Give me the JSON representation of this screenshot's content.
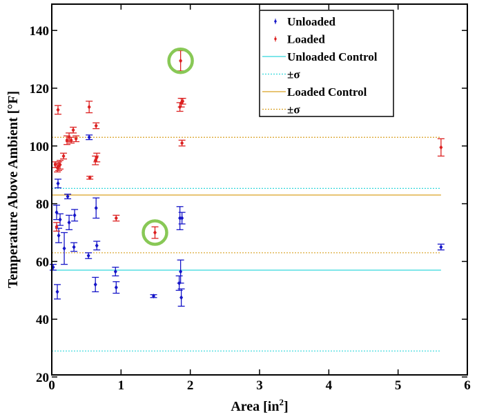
{
  "chart_data": {
    "type": "scatter",
    "xlabel": "Area [in",
    "xlabel_sup": "2",
    "xlabel_end": "]",
    "ylabel": "Temperature Above Ambient [°F]",
    "xlim": [
      0,
      6
    ],
    "ylim": [
      20,
      145
    ],
    "x_ticks": [
      0,
      1,
      2,
      3,
      4,
      5,
      6
    ],
    "y_ticks": [
      20,
      40,
      60,
      80,
      100,
      120,
      140
    ],
    "grid": false,
    "legend_position": "top-right",
    "colors": {
      "unloaded": "#1515c8",
      "loaded": "#dc2020",
      "unloaded_control": "#30d8dc",
      "loaded_control": "#d9a020",
      "highlight": "#88c856"
    },
    "series": [
      {
        "name": "Unloaded",
        "kind": "points",
        "color_key": "unloaded",
        "points": [
          {
            "x": 0.02,
            "y": 58.0,
            "err": 1.0
          },
          {
            "x": 0.07,
            "y": 77.0,
            "err": 2.5
          },
          {
            "x": 0.08,
            "y": 49.5,
            "err": 2.5
          },
          {
            "x": 0.09,
            "y": 87.0,
            "err": 1.5
          },
          {
            "x": 0.1,
            "y": 69.0,
            "err": 2.5
          },
          {
            "x": 0.12,
            "y": 74.5,
            "err": 2.0
          },
          {
            "x": 0.18,
            "y": 64.5,
            "err": 5.5
          },
          {
            "x": 0.23,
            "y": 82.5,
            "err": 0.8
          },
          {
            "x": 0.25,
            "y": 73.5,
            "err": 2.5
          },
          {
            "x": 0.32,
            "y": 65.0,
            "err": 1.5
          },
          {
            "x": 0.33,
            "y": 76.0,
            "err": 2.0
          },
          {
            "x": 0.53,
            "y": 62.0,
            "err": 1.0
          },
          {
            "x": 0.54,
            "y": 103.0,
            "err": 0.8
          },
          {
            "x": 0.63,
            "y": 52.0,
            "err": 2.5
          },
          {
            "x": 0.64,
            "y": 78.5,
            "err": 3.5
          },
          {
            "x": 0.65,
            "y": 65.5,
            "err": 1.5
          },
          {
            "x": 0.92,
            "y": 56.5,
            "err": 1.5
          },
          {
            "x": 0.93,
            "y": 51.0,
            "err": 2.0
          },
          {
            "x": 1.47,
            "y": 48.0,
            "err": 0.5
          },
          {
            "x": 1.84,
            "y": 52.5,
            "err": 2.5
          },
          {
            "x": 1.85,
            "y": 75.0,
            "err": 4.0
          },
          {
            "x": 1.86,
            "y": 56.5,
            "err": 4.0
          },
          {
            "x": 1.87,
            "y": 47.5,
            "err": 3.0
          },
          {
            "x": 1.88,
            "y": 75.0,
            "err": 2.0
          },
          {
            "x": 5.62,
            "y": 65.0,
            "err": 1.0
          }
        ]
      },
      {
        "name": "Loaded",
        "kind": "points",
        "color_key": "loaded",
        "points": [
          {
            "x": 0.05,
            "y": 93.5,
            "err": 1.0
          },
          {
            "x": 0.07,
            "y": 72.0,
            "err": 1.5
          },
          {
            "x": 0.08,
            "y": 92.5,
            "err": 1.5
          },
          {
            "x": 0.09,
            "y": 112.5,
            "err": 1.5
          },
          {
            "x": 0.1,
            "y": 93.0,
            "err": 1.5
          },
          {
            "x": 0.12,
            "y": 93.5,
            "err": 1.5
          },
          {
            "x": 0.17,
            "y": 96.5,
            "err": 1.0
          },
          {
            "x": 0.22,
            "y": 102.0,
            "err": 1.5
          },
          {
            "x": 0.25,
            "y": 103.0,
            "err": 1.5
          },
          {
            "x": 0.28,
            "y": 102.0,
            "err": 1.0
          },
          {
            "x": 0.31,
            "y": 105.5,
            "err": 1.0
          },
          {
            "x": 0.35,
            "y": 102.5,
            "err": 1.0
          },
          {
            "x": 0.54,
            "y": 113.5,
            "err": 2.0
          },
          {
            "x": 0.55,
            "y": 89.0,
            "err": 0.5
          },
          {
            "x": 0.63,
            "y": 95.0,
            "err": 1.5
          },
          {
            "x": 0.64,
            "y": 107.0,
            "err": 1.0
          },
          {
            "x": 0.65,
            "y": 96.0,
            "err": 1.5
          },
          {
            "x": 0.93,
            "y": 75.0,
            "err": 1.0
          },
          {
            "x": 1.49,
            "y": 70.0,
            "err": 2.0
          },
          {
            "x": 1.85,
            "y": 113.5,
            "err": 1.5
          },
          {
            "x": 1.86,
            "y": 129.5,
            "err": 3.5
          },
          {
            "x": 1.87,
            "y": 115.0,
            "err": 1.5
          },
          {
            "x": 1.88,
            "y": 101.0,
            "err": 1.0
          },
          {
            "x": 1.89,
            "y": 115.5,
            "err": 1.0
          },
          {
            "x": 5.62,
            "y": 99.5,
            "err": 3.0
          }
        ]
      },
      {
        "name": "Unloaded Control",
        "kind": "hline",
        "color_key": "unloaded_control",
        "dotted": false,
        "values": [
          57.0
        ]
      },
      {
        "name": "±σ",
        "kind": "hline",
        "color_key": "unloaded_control",
        "dotted": true,
        "values": [
          85.3,
          29.0
        ]
      },
      {
        "name": "Loaded Control",
        "kind": "hline",
        "color_key": "loaded_control",
        "dotted": false,
        "values": [
          83.0
        ]
      },
      {
        "name": "±σ",
        "kind": "hline",
        "color_key": "loaded_control",
        "dotted": true,
        "values": [
          103.0,
          63.0
        ]
      }
    ],
    "hline_x_range": [
      0,
      5.62
    ],
    "highlighted_points": [
      {
        "x": 1.86,
        "y": 129.5
      },
      {
        "x": 1.49,
        "y": 70.0
      }
    ]
  }
}
